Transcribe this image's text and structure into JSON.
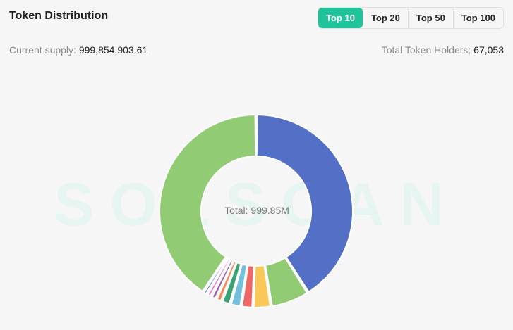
{
  "header": {
    "title": "Token Distribution",
    "tabs": [
      {
        "label": "Top 10",
        "active": true
      },
      {
        "label": "Top 20",
        "active": false
      },
      {
        "label": "Top 50",
        "active": false
      },
      {
        "label": "Top 100",
        "active": false
      }
    ]
  },
  "stats": {
    "supply_label": "Current supply:",
    "supply_value": "999,854,903.61",
    "holders_label": "Total Token Holders:",
    "holders_value": "67,053"
  },
  "watermark": "SOLSCAN",
  "center_label": "Total: 999.85M",
  "colors": {
    "accent": "#20c49a"
  },
  "chart_data": {
    "type": "pie",
    "donut": true,
    "center_text": "Total: 999.85M",
    "series": [
      {
        "value": 41.0,
        "color": "#5470c6"
      },
      {
        "value": 6.5,
        "color": "#91cc75"
      },
      {
        "value": 3.0,
        "color": "#fac858"
      },
      {
        "value": 2.0,
        "color": "#ee6666"
      },
      {
        "value": 1.8,
        "color": "#73c0de"
      },
      {
        "value": 1.5,
        "color": "#3ba272"
      },
      {
        "value": 1.0,
        "color": "#fc8452"
      },
      {
        "value": 0.9,
        "color": "#9a60b4"
      },
      {
        "value": 0.8,
        "color": "#ea7ccc"
      },
      {
        "value": 0.7,
        "color": "#5470c6"
      },
      {
        "value": 40.8,
        "color": "#91cc75"
      }
    ]
  }
}
